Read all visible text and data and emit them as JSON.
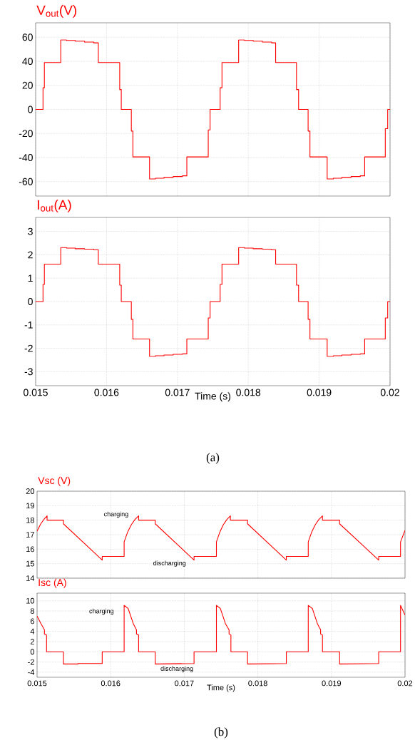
{
  "chart_data": [
    {
      "type": "step",
      "title": "V$_{out}$(V)",
      "xlim": [
        0.015,
        0.02
      ],
      "xticks": [
        0.015,
        0.016,
        0.017,
        0.018,
        0.019,
        0.02
      ],
      "ylim": [
        -72,
        72
      ],
      "yticks": [
        -60,
        -40,
        -20,
        0,
        20,
        40,
        60
      ],
      "grid": true,
      "tick_labels": "y",
      "series": [
        {
          "color": "#ff0000",
          "x": [
            0.015,
            0.015104,
            0.015123,
            0.015354,
            0.015436,
            0.015559,
            0.01569,
            0.01582,
            0.015884,
            0.016186,
            0.016208,
            0.01635,
            0.016372,
            0.016607,
            0.01669,
            0.01681,
            0.01694,
            0.01707,
            0.017133,
            0.017435,
            0.017461,
            0.017603,
            0.017629,
            0.017864,
            0.017946,
            0.01807,
            0.0182,
            0.01833,
            0.018386,
            0.01868,
            0.01871,
            0.018844,
            0.01887,
            0.019113,
            0.0192,
            0.01932,
            0.01945,
            0.01958,
            0.019642,
            0.019933,
            0.019967,
            0.02
          ],
          "values": [
            0,
            18,
            39,
            57.8,
            57.3,
            56.7,
            56,
            55.3,
            39,
            16.5,
            0,
            -18,
            -39.5,
            -57.8,
            -57.2,
            -56.5,
            -55.8,
            -55.2,
            -39.5,
            -17,
            0,
            18,
            39,
            57.8,
            57.3,
            56.7,
            56,
            55.3,
            39,
            16.5,
            0,
            -18,
            -39.5,
            -57.8,
            -57.2,
            -56.5,
            -55.8,
            -55.2,
            -39.5,
            -16,
            0,
            0
          ]
        }
      ]
    },
    {
      "type": "step",
      "title": "I$_{out}$(A)",
      "xlabel": "Time (s)",
      "xlim": [
        0.015,
        0.02
      ],
      "xticks": [
        0.015,
        0.016,
        0.017,
        0.018,
        0.019,
        0.02
      ],
      "ylim": [
        -3.6,
        3.6
      ],
      "yticks": [
        -3,
        -2,
        -1,
        0,
        1,
        2,
        3
      ],
      "grid": true,
      "annotations": [
        "(a)"
      ],
      "series": [
        {
          "color": "#ff0000",
          "x": [
            0.015,
            0.015104,
            0.015123,
            0.015354,
            0.015436,
            0.015559,
            0.01569,
            0.01582,
            0.015884,
            0.016186,
            0.016208,
            0.01635,
            0.016372,
            0.016607,
            0.01669,
            0.01681,
            0.01694,
            0.01707,
            0.017133,
            0.017435,
            0.017461,
            0.017603,
            0.017629,
            0.017864,
            0.017946,
            0.01807,
            0.0182,
            0.01833,
            0.018386,
            0.01868,
            0.01871,
            0.018844,
            0.01887,
            0.019113,
            0.0192,
            0.01932,
            0.01945,
            0.01958,
            0.019642,
            0.019933,
            0.019967,
            0.02
          ],
          "values": [
            0,
            0.73,
            1.6,
            2.31,
            2.29,
            2.26,
            2.24,
            2.22,
            1.6,
            0.7,
            0,
            -0.76,
            -1.6,
            -2.35,
            -2.32,
            -2.29,
            -2.26,
            -2.24,
            -1.6,
            -0.7,
            0,
            0.73,
            1.6,
            2.31,
            2.29,
            2.26,
            2.24,
            2.22,
            1.6,
            0.7,
            0,
            -0.76,
            -1.6,
            -2.35,
            -2.32,
            -2.29,
            -2.26,
            -2.24,
            -1.6,
            -0.7,
            0,
            0
          ]
        }
      ]
    },
    {
      "type": "line",
      "title": "Vsc (V)",
      "xlim": [
        0.015,
        0.02
      ],
      "xticks": [
        0.015,
        0.016,
        0.017,
        0.018,
        0.019,
        0.02
      ],
      "ylim": [
        14,
        20
      ],
      "yticks": [
        14,
        15,
        16,
        17,
        18,
        19,
        20
      ],
      "grid": true,
      "tick_labels": "y",
      "annotations": [
        "charging",
        "discharging"
      ],
      "series": [
        {
          "color": "#ff0000",
          "x": [
            0.015,
            0.01505,
            0.0151,
            0.015136,
            0.015136,
            0.015358,
            0.015358,
            0.015885,
            0.015885,
            0.016183,
            0.016183,
            0.016232,
            0.016282,
            0.016331,
            0.01638,
            0.01638,
            0.016606,
            0.016606,
            0.017133,
            0.017133,
            0.017437,
            0.017437,
            0.017485,
            0.017532,
            0.01758,
            0.017627,
            0.017627,
            0.01786,
            0.01786,
            0.018387,
            0.018387,
            0.018685,
            0.018685,
            0.018733,
            0.018782,
            0.01883,
            0.018878,
            0.018878,
            0.019111,
            0.019111,
            0.019642,
            0.019642,
            0.019939,
            0.019939,
            0.02
          ],
          "values": [
            17.25,
            17.75,
            18.1,
            18.3,
            18.0,
            18.0,
            17.75,
            15.25,
            15.5,
            15.5,
            16.5,
            17.2,
            17.7,
            18.05,
            18.3,
            18.0,
            18.0,
            17.75,
            15.25,
            15.5,
            15.5,
            16.5,
            17.2,
            17.7,
            18.05,
            18.3,
            18.0,
            18.0,
            17.75,
            15.25,
            15.5,
            15.5,
            16.5,
            17.2,
            17.7,
            18.05,
            18.3,
            18.0,
            18.0,
            17.75,
            15.25,
            15.5,
            15.5,
            16.5,
            17.3
          ]
        }
      ]
    },
    {
      "type": "line",
      "title": "Isc (A)",
      "xlabel": "Time (s)",
      "xlim": [
        0.015,
        0.02
      ],
      "xticks": [
        0.015,
        0.016,
        0.017,
        0.018,
        0.019,
        0.02
      ],
      "ylim": [
        -5,
        11.5
      ],
      "yticks": [
        -4,
        -2,
        0,
        2,
        4,
        6,
        8,
        10
      ],
      "grid": true,
      "annotations": [
        "charging",
        "discharging",
        "(b)"
      ],
      "series": [
        {
          "color": "#ff0000",
          "x": [
            0.015,
            0.01505,
            0.0151,
            0.0151,
            0.015129,
            0.015129,
            0.015358,
            0.015358,
            0.015556,
            0.015556,
            0.015885,
            0.015885,
            0.016183,
            0.016183,
            0.016237,
            0.016308,
            0.016351,
            0.016351,
            0.01638,
            0.01638,
            0.016606,
            0.016606,
            0.017133,
            0.017133,
            0.017437,
            0.017437,
            0.01749,
            0.01756,
            0.017609,
            0.017609,
            0.017634,
            0.017634,
            0.01786,
            0.01786,
            0.018387,
            0.018387,
            0.018685,
            0.018685,
            0.01874,
            0.01881,
            0.018853,
            0.018853,
            0.018878,
            0.018878,
            0.019111,
            0.019111,
            0.019642,
            0.019642,
            0.019939,
            0.019939,
            0.02
          ],
          "values": [
            7.0,
            5.6,
            4.3,
            3.5,
            3.3,
            0,
            0,
            -2.4,
            -2.4,
            -2.3,
            -2.3,
            0,
            0,
            9.1,
            8.5,
            5.5,
            4.3,
            3.5,
            3.3,
            0,
            0,
            -2.4,
            -2.3,
            0,
            0,
            9.1,
            8.5,
            5.5,
            4.3,
            3.5,
            3.3,
            0,
            0,
            -2.4,
            -2.3,
            0,
            0,
            9.1,
            8.5,
            5.5,
            4.3,
            3.5,
            3.3,
            0,
            0,
            -2.4,
            -2.3,
            0,
            0,
            9.1,
            7.2
          ]
        }
      ]
    }
  ]
}
